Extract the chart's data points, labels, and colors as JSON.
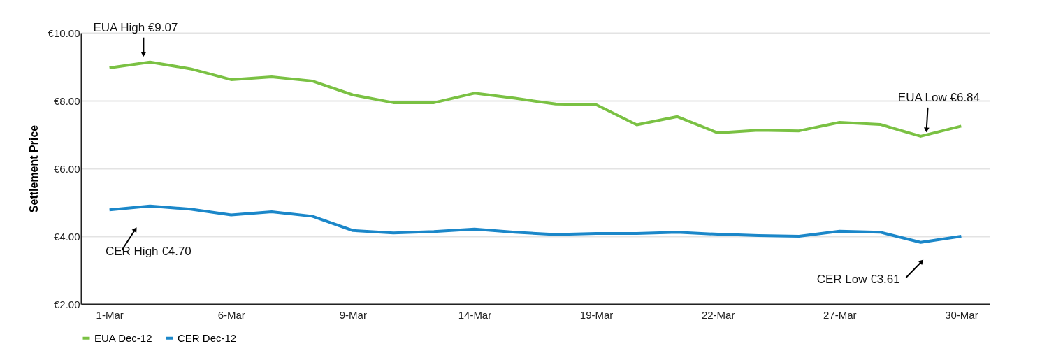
{
  "chart_data": {
    "type": "line",
    "ylabel": "Settlement Price",
    "categories": [
      "1-Mar",
      null,
      null,
      "6-Mar",
      null,
      null,
      "9-Mar",
      null,
      null,
      "14-Mar",
      null,
      null,
      "19-Mar",
      null,
      null,
      "22-Mar",
      null,
      null,
      "27-Mar",
      null,
      null,
      "30-Mar"
    ],
    "series": [
      {
        "name": "EUA Dec-12",
        "color": "#7ac143",
        "values": [
          8.97,
          9.14,
          8.94,
          8.62,
          8.7,
          8.58,
          8.17,
          7.94,
          7.94,
          8.22,
          8.07,
          7.9,
          7.88,
          7.29,
          7.53,
          7.05,
          7.13,
          7.11,
          7.36,
          7.3,
          6.95,
          7.25
        ]
      },
      {
        "name": "CER Dec-12",
        "color": "#1b87c9",
        "values": [
          4.78,
          4.89,
          4.8,
          4.63,
          4.72,
          4.59,
          4.17,
          4.1,
          4.14,
          4.21,
          4.12,
          4.05,
          4.08,
          4.08,
          4.12,
          4.06,
          4.02,
          4.0,
          4.15,
          4.12,
          3.82,
          4.0
        ]
      }
    ],
    "ylim": [
      2,
      10
    ],
    "yticks": [
      {
        "value": 2,
        "label": "€2.00"
      },
      {
        "value": 4,
        "label": "€4.00"
      },
      {
        "value": 6,
        "label": "€6.00"
      },
      {
        "value": 8,
        "label": "€8.00"
      },
      {
        "value": 10,
        "label": "€10.00"
      }
    ],
    "grid": "y",
    "legend": "bottom",
    "marker": "none",
    "line_style": "solid",
    "annotations": [
      {
        "text": "EUA High €9.07",
        "y": 9.14
      },
      "CER High €4.70",
      {
        "text": "EUA Low €6.84",
        "y": 6.95
      },
      "CER Low €3.61"
    ]
  }
}
